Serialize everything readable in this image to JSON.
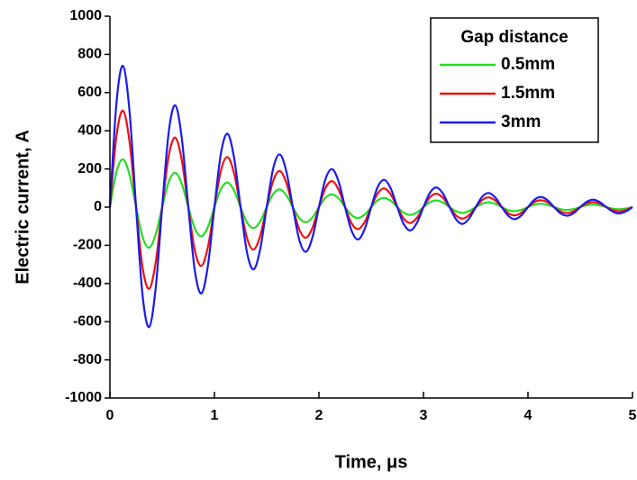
{
  "chart_data": {
    "type": "line",
    "x_label": "Time, μs",
    "y_label": "Electric current, A",
    "legend_title": "Gap distance",
    "legend_position": "upper right",
    "xlim": [
      0,
      5
    ],
    "xticks": [
      0,
      1,
      2,
      3,
      4,
      5
    ],
    "ylim": [
      -1000,
      1000
    ],
    "yticks": [
      -1000,
      -800,
      -600,
      -400,
      -200,
      0,
      200,
      400,
      600,
      800,
      1000
    ],
    "x": [
      0,
      0.0625,
      0.125,
      0.1875,
      0.25,
      0.3125,
      0.375,
      0.4375,
      0.5,
      0.5625,
      0.625,
      0.6875,
      0.75,
      0.8125,
      0.875,
      0.9375,
      1,
      1.0625,
      1.125,
      1.1875,
      1.25,
      1.3125,
      1.375,
      1.4375,
      1.5,
      1.5625,
      1.625,
      1.6875,
      1.75,
      1.8125,
      1.875,
      1.9375,
      2,
      2.0625,
      2.125,
      2.1875,
      2.25,
      2.3125,
      2.375,
      2.4375,
      2.5,
      2.5625,
      2.625,
      2.6875,
      2.75,
      2.8125,
      2.875,
      2.9375,
      3,
      3.0625,
      3.125,
      3.1875,
      3.25,
      3.3125,
      3.375,
      3.4375,
      3.5,
      3.5625,
      3.625,
      3.6875,
      3.75,
      3.8125,
      3.875,
      3.9375,
      4,
      4.0625,
      4.125,
      4.1875,
      4.25,
      4.3125,
      4.375,
      4.4375,
      4.5,
      4.5625,
      4.625,
      4.6875,
      4.75,
      4.8125,
      4.875,
      4.9375,
      5
    ],
    "series": [
      {
        "name": "0.5mm",
        "color": "#22dd22",
        "values": [
          0,
          184,
          250,
          169,
          0,
          -156,
          -212,
          -144,
          0,
          132,
          180,
          122,
          0,
          -112,
          -153,
          -104,
          0,
          95,
          129,
          88,
          0,
          -81,
          -110,
          -75,
          0,
          69,
          93,
          63,
          0,
          -58,
          -79,
          -54,
          0,
          49,
          67,
          46,
          0,
          -42,
          -57,
          -39,
          0,
          36,
          48,
          33,
          0,
          -30,
          -41,
          -28,
          0,
          26,
          35,
          24,
          0,
          -22,
          -30,
          -20,
          0,
          18,
          25,
          17,
          0,
          -16,
          -21,
          -14,
          0,
          13,
          18,
          12,
          0,
          -11,
          -15,
          -10,
          0,
          10,
          13,
          9,
          0,
          -8,
          -11,
          -7,
          0
        ]
      },
      {
        "name": "1.5mm",
        "color": "#ee1111",
        "values": [
          0,
          372,
          505,
          343,
          0,
          -316,
          -428,
          -291,
          0,
          268,
          364,
          247,
          0,
          -227,
          -308,
          -209,
          0,
          193,
          262,
          178,
          0,
          -164,
          -222,
          -151,
          0,
          139,
          189,
          128,
          0,
          -118,
          -160,
          -109,
          0,
          100,
          136,
          92,
          0,
          -85,
          -115,
          -78,
          0,
          72,
          98,
          66,
          0,
          -61,
          -83,
          -56,
          0,
          52,
          70,
          48,
          0,
          -44,
          -60,
          -41,
          0,
          37,
          51,
          34,
          0,
          -32,
          -43,
          -29,
          0,
          27,
          36,
          25,
          0,
          -23,
          -31,
          -21,
          0,
          19,
          26,
          18,
          0,
          -16,
          -22,
          -15,
          0
        ]
      },
      {
        "name": "3mm",
        "color": "#1a1aee",
        "values": [
          0,
          545,
          740,
          502,
          0,
          -462,
          -628,
          -426,
          0,
          392,
          533,
          362,
          0,
          -333,
          -452,
          -307,
          0,
          283,
          384,
          260,
          0,
          -240,
          -326,
          -221,
          0,
          203,
          276,
          188,
          0,
          -173,
          -234,
          -159,
          0,
          147,
          199,
          135,
          0,
          -124,
          -169,
          -115,
          0,
          106,
          143,
          97,
          0,
          -90,
          -122,
          -82,
          0,
          76,
          103,
          70,
          0,
          -64,
          -88,
          -59,
          0,
          55,
          74,
          50,
          0,
          -46,
          -63,
          -43,
          0,
          39,
          53,
          36,
          0,
          -33,
          -45,
          -31,
          0,
          28,
          39,
          26,
          0,
          -24,
          -33,
          -22,
          0
        ]
      }
    ]
  }
}
